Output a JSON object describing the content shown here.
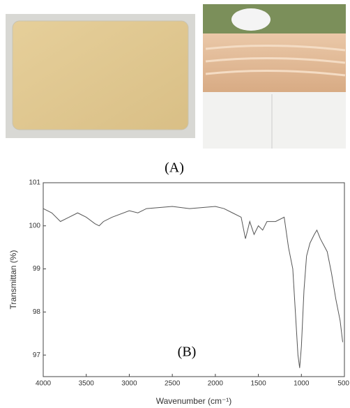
{
  "labels": {
    "a": "(A)",
    "b": "(B)"
  },
  "chart_data": {
    "type": "line",
    "xlabel": "Wavenumber (cm⁻¹)",
    "ylabel": "Transmittan (%)",
    "x": [
      4000,
      3900,
      3800,
      3700,
      3600,
      3500,
      3400,
      3350,
      3300,
      3200,
      3000,
      2900,
      2800,
      2500,
      2300,
      2000,
      1900,
      1800,
      1700,
      1650,
      1600,
      1550,
      1500,
      1450,
      1400,
      1300,
      1200,
      1150,
      1100,
      1070,
      1040,
      1020,
      1000,
      970,
      940,
      900,
      850,
      820,
      780,
      700,
      650,
      600,
      550,
      520
    ],
    "series": [
      {
        "color": "#555555",
        "values": [
          100.4,
          100.3,
          100.1,
          100.2,
          100.3,
          100.2,
          100.05,
          100.0,
          100.1,
          100.2,
          100.35,
          100.3,
          100.4,
          100.45,
          100.4,
          100.45,
          100.4,
          100.3,
          100.2,
          99.7,
          100.1,
          99.8,
          100.0,
          99.9,
          100.1,
          100.1,
          100.2,
          99.5,
          99.0,
          98.0,
          97.0,
          96.7,
          97.2,
          98.5,
          99.3,
          99.6,
          99.8,
          99.9,
          99.7,
          99.4,
          98.9,
          98.3,
          97.8,
          97.3
        ]
      }
    ],
    "xlim": [
      4000,
      500
    ],
    "xticks": [
      4000,
      3500,
      3000,
      2500,
      2000,
      1500,
      1000,
      500
    ],
    "ylim": [
      96.5,
      101
    ],
    "yticks": [
      97,
      98,
      99,
      100,
      101
    ]
  }
}
